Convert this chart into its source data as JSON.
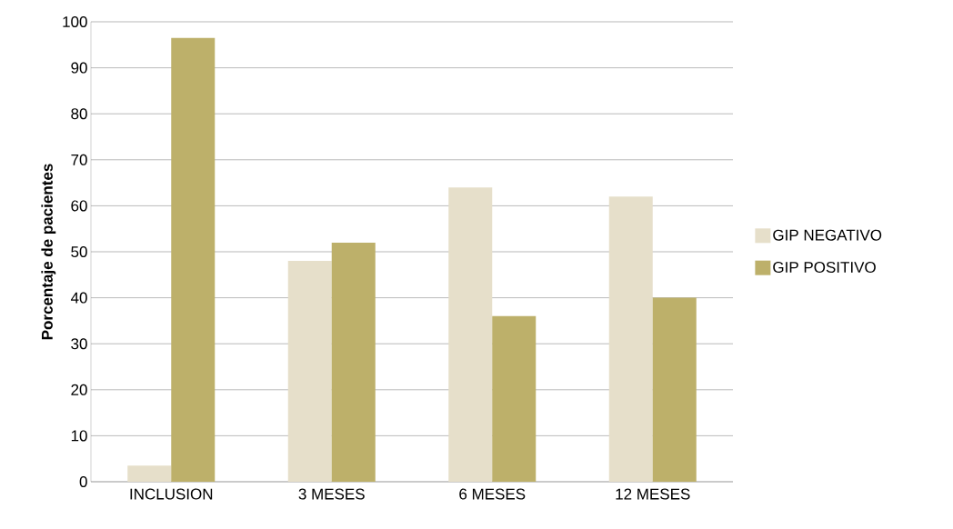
{
  "chart_data": {
    "type": "bar",
    "ylabel": "Porcentaje de pacientes",
    "categories": [
      "INCLUSION",
      "3 MESES",
      "6 MESES",
      "12 MESES"
    ],
    "series": [
      {
        "name": "GIP NEGATIVO",
        "color": "#e6dfca",
        "values": [
          3.5,
          48,
          64,
          62
        ]
      },
      {
        "name": "GIP POSITIVO",
        "color": "#bdb06a",
        "values": [
          96.5,
          52,
          36,
          40
        ]
      }
    ],
    "ylim": [
      0,
      100
    ],
    "yticks": [
      0,
      10,
      20,
      30,
      40,
      50,
      60,
      70,
      80,
      90,
      100
    ],
    "grid": "y",
    "legend": "right"
  }
}
